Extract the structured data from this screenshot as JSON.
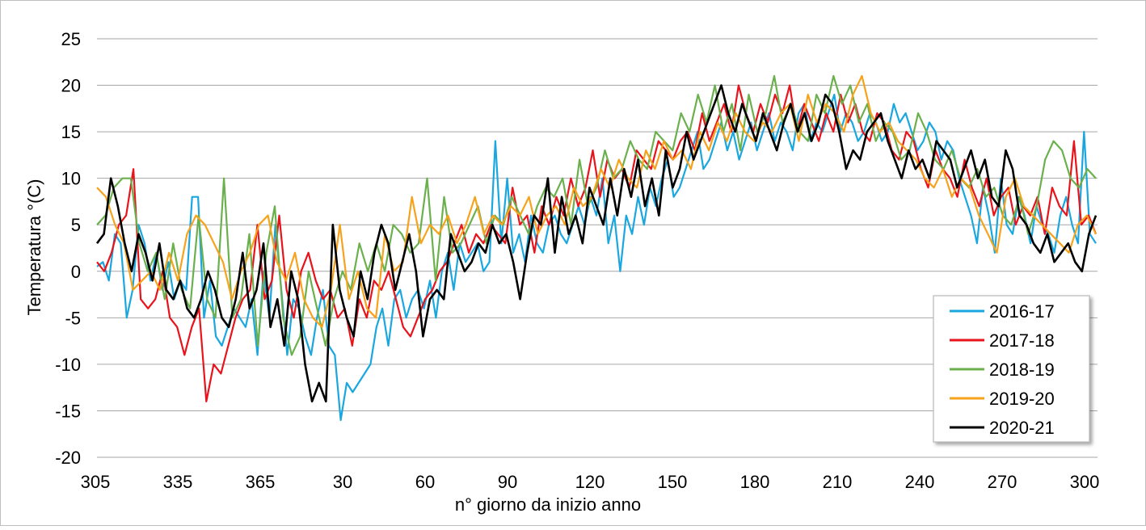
{
  "chart_data": {
    "type": "line",
    "title": "",
    "xlabel": "n° giorno da inizio anno",
    "ylabel": "Temperatura °(C)",
    "ylim": [
      -20,
      25
    ],
    "y_ticks": [
      -20,
      -15,
      -10,
      -5,
      0,
      5,
      10,
      15,
      20,
      25
    ],
    "x_tick_labels": [
      "305",
      "335",
      "365",
      "30",
      "60",
      "90",
      "120",
      "150",
      "180",
      "210",
      "240",
      "270",
      "300"
    ],
    "grid": true,
    "legend_position": "right",
    "series": [
      {
        "name": "2016-17",
        "color": "#1aa7e0",
        "values": [
          0.5,
          1,
          -1,
          4,
          3,
          -5,
          -2,
          5,
          3,
          -1,
          2,
          -2,
          1,
          -3,
          -1,
          -2,
          8,
          8,
          -5,
          -1,
          -7,
          -8,
          -6,
          -4,
          -5,
          -6,
          -3,
          -9,
          0,
          -5,
          5,
          -2,
          -9,
          -3,
          -4,
          -7,
          -9,
          -5,
          -2,
          -8,
          -9,
          -16,
          -12,
          -13,
          -12,
          -11,
          -10,
          -6,
          -4,
          -8,
          -3,
          -2,
          -5,
          -3,
          -2,
          -4,
          -1,
          -5,
          0,
          2,
          -2,
          3,
          1,
          2,
          3,
          0,
          1,
          14,
          3,
          10,
          2,
          4,
          1,
          6,
          3,
          2,
          5,
          6,
          4,
          3,
          5,
          7,
          5,
          8,
          6,
          10,
          3,
          6,
          0,
          6,
          4,
          8,
          5,
          9,
          7,
          10,
          12,
          8,
          9,
          11,
          13,
          15,
          11,
          12,
          14,
          16,
          13,
          15,
          12,
          14,
          16,
          13,
          15,
          17,
          14,
          16,
          15,
          13,
          17,
          18,
          14,
          16,
          15,
          17,
          19,
          15,
          17,
          16,
          14,
          15,
          17,
          16,
          14,
          15,
          18,
          16,
          17,
          15,
          13,
          14,
          16,
          15,
          12,
          14,
          13,
          10,
          8,
          6,
          3,
          9,
          6,
          2,
          10,
          5,
          4,
          8,
          6,
          3,
          7,
          5,
          4,
          2,
          6,
          8,
          5,
          3,
          15,
          4,
          3
        ]
      },
      {
        "name": "2017-18",
        "color": "#e8131b",
        "values": [
          1,
          0,
          2,
          5,
          6,
          11,
          -3,
          -4,
          -3,
          0,
          -5,
          -6,
          -9,
          -6,
          -4,
          -14,
          -10,
          -11,
          -8,
          -5,
          -3,
          -2,
          5,
          -3,
          -1,
          6,
          -2,
          -5,
          0,
          2,
          -1,
          -3,
          -2,
          -5,
          -4,
          -8,
          -3,
          -5,
          -1,
          -2,
          0,
          -3,
          -6,
          -7,
          -5,
          -3,
          -2,
          0,
          1,
          3,
          5,
          2,
          4,
          3,
          5,
          4,
          3,
          9,
          5,
          6,
          2,
          7,
          5,
          8,
          6,
          10,
          7,
          9,
          13,
          8,
          12,
          10,
          11,
          9,
          13,
          12,
          11,
          14,
          13,
          12,
          14,
          15,
          13,
          17,
          14,
          16,
          18,
          15,
          20,
          17,
          15,
          18,
          16,
          19,
          17,
          20,
          15,
          18,
          16,
          14,
          17,
          15,
          19,
          16,
          18,
          15,
          14,
          17,
          16,
          13,
          12,
          15,
          14,
          11,
          9,
          13,
          11,
          10,
          8,
          12,
          9,
          7,
          10,
          6,
          8,
          9,
          5,
          7,
          6,
          8,
          4,
          9,
          7,
          6,
          14,
          5,
          6,
          4
        ]
      },
      {
        "name": "2018-19",
        "color": "#6ab04c",
        "values": [
          5,
          6,
          9,
          10,
          10,
          3,
          0,
          2,
          -3,
          3,
          -2,
          -4,
          6,
          -3,
          -5,
          10,
          -5,
          -3,
          4,
          -8,
          2,
          7,
          -5,
          -9,
          -7,
          0,
          -4,
          -8,
          -3,
          0,
          -2,
          3,
          0,
          3,
          0,
          5,
          4,
          2,
          3,
          10,
          -1,
          8,
          2,
          3,
          5,
          7,
          3,
          6,
          5,
          8,
          6,
          4,
          7,
          9,
          8,
          10,
          5,
          12,
          7,
          9,
          13,
          10,
          11,
          14,
          12,
          11,
          15,
          14,
          13,
          17,
          15,
          19,
          16,
          20,
          15,
          18,
          13,
          19,
          15,
          17,
          21,
          16,
          18,
          15,
          14,
          19,
          17,
          21,
          18,
          20,
          16,
          18,
          14,
          16,
          15,
          12,
          13,
          17,
          15,
          12,
          11,
          13,
          10,
          9,
          11,
          8,
          9,
          6,
          5,
          8,
          4,
          7,
          12,
          14,
          13,
          10,
          9,
          11,
          10
        ]
      },
      {
        "name": "2019-20",
        "color": "#f7a21b",
        "values": [
          9,
          8,
          5,
          3,
          -2,
          -1,
          0,
          -2,
          2,
          -1,
          4,
          6,
          5,
          3,
          1,
          -3,
          0,
          2,
          5,
          6,
          1,
          -1,
          2,
          -3,
          -5,
          -6,
          -2,
          5,
          -3,
          0,
          -4,
          -5,
          4,
          0,
          1,
          8,
          3,
          5,
          4,
          6,
          3,
          5,
          8,
          4,
          6,
          5,
          7,
          6,
          8,
          4,
          6,
          7,
          5,
          9,
          7,
          8,
          11,
          9,
          12,
          10,
          9,
          13,
          11,
          14,
          12,
          13,
          11,
          15,
          13,
          16,
          14,
          17,
          15,
          14,
          16,
          15,
          17,
          18,
          14,
          19,
          16,
          18,
          17,
          15,
          19,
          21,
          17,
          15,
          16,
          14,
          13,
          12,
          10,
          9,
          11,
          8,
          10,
          9,
          6,
          4,
          2,
          8,
          10,
          7,
          6,
          5,
          4,
          3,
          2,
          5,
          6,
          4
        ]
      },
      {
        "name": "2020-21",
        "color": "#000000",
        "values": [
          3,
          4,
          10,
          7,
          3,
          0,
          4,
          2,
          -1,
          3,
          -2,
          -3,
          -1,
          -4,
          -5,
          -3,
          0,
          -2,
          -5,
          -6,
          -3,
          2,
          -4,
          -2,
          3,
          -6,
          -3,
          -8,
          0,
          -3,
          -10,
          -14,
          -12,
          -14,
          5,
          -2,
          -5,
          -7,
          0,
          -3,
          2,
          5,
          3,
          -2,
          1,
          4,
          0,
          -7,
          -3,
          -2,
          -3,
          4,
          2,
          0,
          1,
          3,
          2,
          5,
          3,
          4,
          1,
          -3,
          2,
          6,
          5,
          10,
          2,
          8,
          4,
          6,
          3,
          9,
          7,
          5,
          10,
          6,
          11,
          8,
          12,
          7,
          10,
          6,
          13,
          9,
          11,
          15,
          12,
          14,
          16,
          18,
          20,
          17,
          15,
          18,
          16,
          14,
          17,
          15,
          13,
          16,
          18,
          15,
          17,
          14,
          16,
          19,
          18,
          15,
          11,
          13,
          12,
          15,
          16,
          17,
          14,
          12,
          10,
          13,
          11,
          12,
          10,
          14,
          13,
          12,
          9,
          11,
          13,
          10,
          12,
          8,
          7,
          13,
          11,
          6,
          5,
          3,
          2,
          4,
          1,
          2,
          3,
          1,
          0,
          4,
          6
        ]
      }
    ]
  }
}
